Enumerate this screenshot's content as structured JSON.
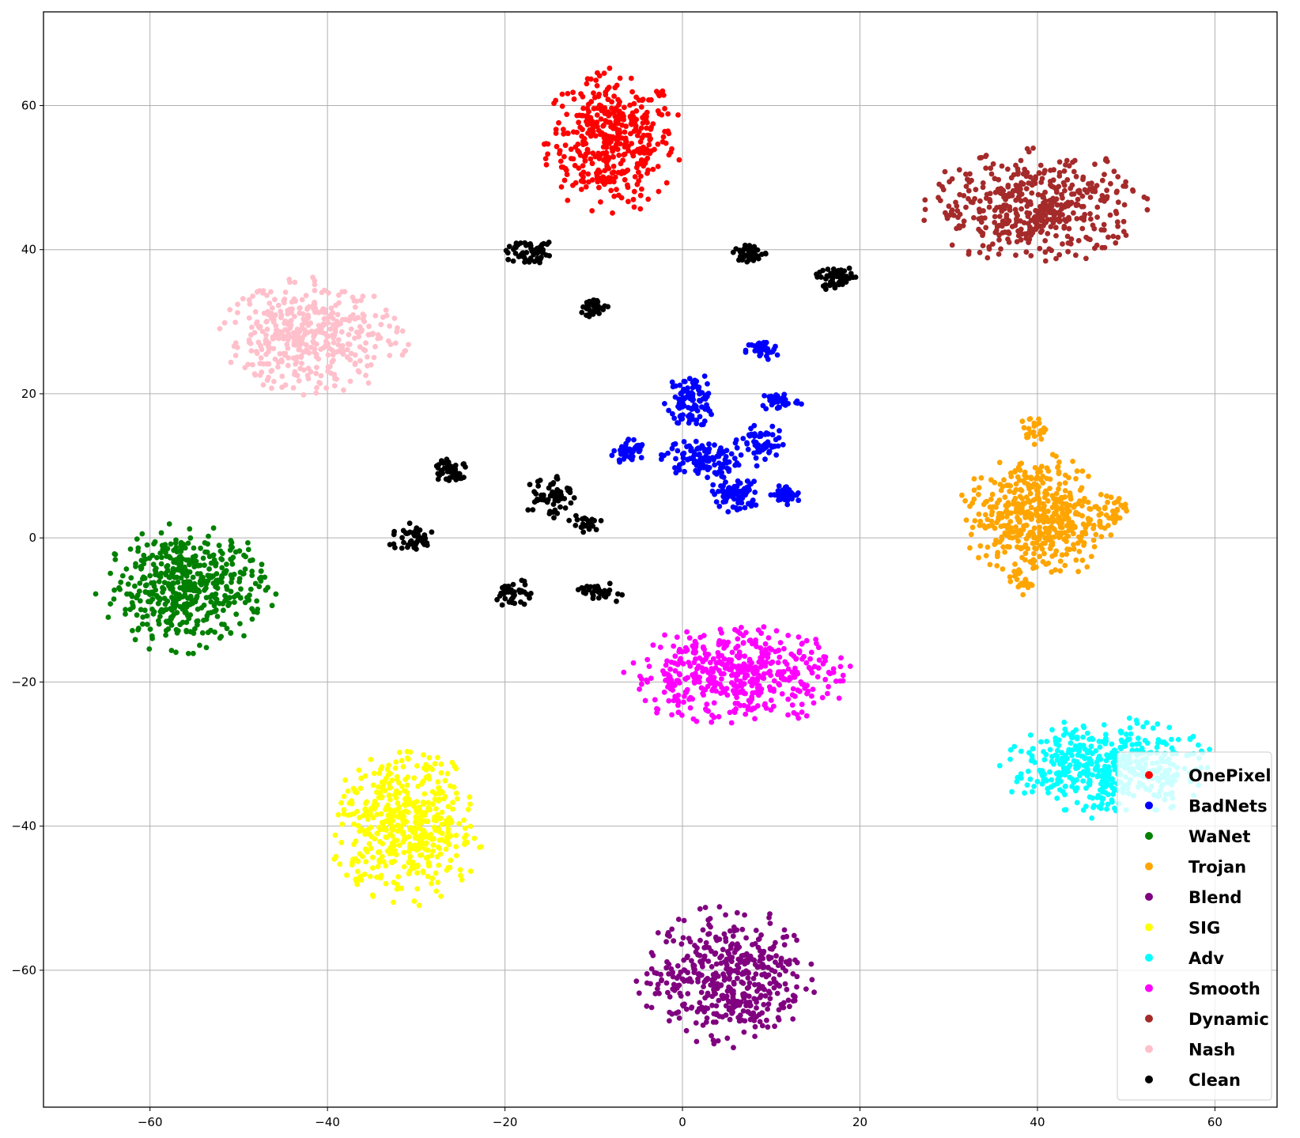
{
  "chart_data": {
    "type": "scatter",
    "title": "",
    "xlabel": "",
    "ylabel": "",
    "xlim": [
      -72,
      67
    ],
    "ylim": [
      -79,
      73
    ],
    "xticks": [
      -60,
      -40,
      -20,
      0,
      20,
      40,
      60
    ],
    "yticks": [
      -60,
      -40,
      -20,
      0,
      20,
      40,
      60
    ],
    "xtick_labels": [
      "−60",
      "−40",
      "−20",
      "0",
      "20",
      "40",
      "60"
    ],
    "ytick_labels": [
      "−60",
      "−40",
      "−20",
      "0",
      "20",
      "40",
      "60"
    ],
    "grid": true,
    "legend_position": "lower right",
    "series": [
      {
        "name": "OnePixel",
        "color": "#ff0000",
        "clusters": [
          {
            "cx": -8,
            "cy": 55,
            "rx": 8,
            "ry": 10,
            "n": 420
          }
        ]
      },
      {
        "name": "BadNets",
        "color": "#0000ff",
        "clusters": [
          {
            "cx": 1,
            "cy": 19,
            "rx": 3,
            "ry": 4,
            "n": 110
          },
          {
            "cx": 9,
            "cy": 26,
            "rx": 2,
            "ry": 1.5,
            "n": 40
          },
          {
            "cx": 11,
            "cy": 19,
            "rx": 2.5,
            "ry": 1.5,
            "n": 40
          },
          {
            "cx": -6,
            "cy": 12,
            "rx": 2,
            "ry": 2,
            "n": 45
          },
          {
            "cx": 2,
            "cy": 11,
            "rx": 5,
            "ry": 3,
            "n": 110
          },
          {
            "cx": 9,
            "cy": 13,
            "rx": 3,
            "ry": 3,
            "n": 60
          },
          {
            "cx": 6,
            "cy": 6,
            "rx": 3,
            "ry": 2.5,
            "n": 80
          },
          {
            "cx": 11.5,
            "cy": 6,
            "rx": 2,
            "ry": 1.5,
            "n": 40
          }
        ]
      },
      {
        "name": "WaNet",
        "color": "#008000",
        "clusters": [
          {
            "cx": -56,
            "cy": -7,
            "rx": 10,
            "ry": 9,
            "n": 480
          }
        ]
      },
      {
        "name": "Trojan",
        "color": "#ffa500",
        "clusters": [
          {
            "cx": 40,
            "cy": 3,
            "rx": 9,
            "ry": 9,
            "n": 480
          },
          {
            "cx": 39.5,
            "cy": 15,
            "rx": 1.5,
            "ry": 2,
            "n": 25
          },
          {
            "cx": 38,
            "cy": -6,
            "rx": 1.5,
            "ry": 2,
            "n": 20
          },
          {
            "cx": 49,
            "cy": 4,
            "rx": 1.5,
            "ry": 2,
            "n": 20
          }
        ]
      },
      {
        "name": "Blend",
        "color": "#800080",
        "clusters": [
          {
            "cx": 5,
            "cy": -61,
            "rx": 10,
            "ry": 10,
            "n": 460
          }
        ]
      },
      {
        "name": "SIG",
        "color": "#ffff00",
        "clusters": [
          {
            "cx": -31,
            "cy": -40,
            "rx": 9,
            "ry": 11,
            "n": 480
          }
        ]
      },
      {
        "name": "Adv",
        "color": "#00ffff",
        "clusters": [
          {
            "cx": 48,
            "cy": -32,
            "rx": 12,
            "ry": 7,
            "n": 480
          }
        ]
      },
      {
        "name": "Smooth",
        "color": "#ff00ff",
        "clusters": [
          {
            "cx": 6,
            "cy": -19,
            "rx": 13,
            "ry": 7,
            "n": 480
          }
        ]
      },
      {
        "name": "Dynamic",
        "color": "#a52a2a",
        "clusters": [
          {
            "cx": 40,
            "cy": 46,
            "rx": 13,
            "ry": 8,
            "n": 460
          }
        ]
      },
      {
        "name": "Nash",
        "color": "#ffc0cb",
        "clusters": [
          {
            "cx": -42,
            "cy": 28,
            "rx": 11,
            "ry": 8,
            "n": 420
          }
        ]
      },
      {
        "name": "Clean",
        "color": "#000000",
        "clusters": [
          {
            "cx": -17,
            "cy": 39.5,
            "rx": 3,
            "ry": 2,
            "n": 60
          },
          {
            "cx": -10,
            "cy": 32,
            "rx": 2,
            "ry": 1.5,
            "n": 40
          },
          {
            "cx": 7.5,
            "cy": 39.5,
            "rx": 2,
            "ry": 1.5,
            "n": 45
          },
          {
            "cx": 17,
            "cy": 36,
            "rx": 3,
            "ry": 1.8,
            "n": 55
          },
          {
            "cx": -26,
            "cy": 9.5,
            "rx": 2.5,
            "ry": 1.8,
            "n": 45
          },
          {
            "cx": -15,
            "cy": 6,
            "rx": 3,
            "ry": 3.5,
            "n": 60
          },
          {
            "cx": -11,
            "cy": 2,
            "rx": 2,
            "ry": 1.5,
            "n": 25
          },
          {
            "cx": -30.5,
            "cy": 0,
            "rx": 3,
            "ry": 2,
            "n": 50
          },
          {
            "cx": -19,
            "cy": -8,
            "rx": 2,
            "ry": 2.5,
            "n": 40
          },
          {
            "cx": -9,
            "cy": -7.5,
            "rx": 3,
            "ry": 1.5,
            "n": 40
          }
        ]
      }
    ]
  }
}
